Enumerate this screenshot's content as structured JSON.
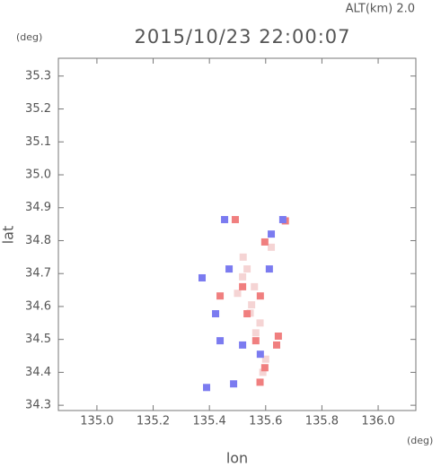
{
  "chart_data": {
    "type": "scatter",
    "header": "ALT(km) 2.0",
    "title": "2015/10/23 22:00:07",
    "y_unit": "(deg)",
    "x_unit": "(deg)",
    "xlabel": "lon",
    "ylabel": "lat",
    "xlim": [
      134.863,
      136.134
    ],
    "ylim": [
      34.284,
      35.354
    ],
    "xticks": [
      {
        "value": 135.0,
        "label": "135.0"
      },
      135.2,
      135.4,
      135.6,
      135.8,
      {
        "value": 136.0,
        "label": "136.0"
      }
    ],
    "yticks": [
      34.3,
      34.4,
      34.5,
      34.6,
      34.7,
      34.8,
      34.9,
      {
        "value": 35.0,
        "label": "35.0"
      },
      35.1,
      35.2,
      35.3
    ],
    "series": [
      {
        "color": "#f5d4d4",
        "x": [
          135.534,
          135.55,
          135.518,
          135.56,
          135.58,
          135.5,
          135.565,
          135.6,
          135.545,
          135.62,
          135.59,
          135.52
        ],
        "values": [
          34.714,
          34.605,
          34.69,
          34.66,
          34.55,
          34.64,
          34.52,
          34.44,
          34.58,
          34.78,
          34.4,
          34.75
        ]
      },
      {
        "color": "#f07f7f",
        "x": [
          135.492,
          135.597,
          135.438,
          135.534,
          135.565,
          135.639,
          135.597,
          135.518,
          135.581,
          135.645,
          135.67,
          135.58
        ],
        "values": [
          34.864,
          34.796,
          34.632,
          34.578,
          34.496,
          34.483,
          34.414,
          34.66,
          34.632,
          34.51,
          34.86,
          34.37
        ]
      },
      {
        "color": "#7b7bf0",
        "x": [
          135.454,
          135.661,
          135.374,
          135.422,
          135.438,
          135.518,
          135.486,
          135.581,
          135.47,
          135.613,
          135.39,
          135.62
        ],
        "values": [
          34.864,
          34.864,
          34.687,
          34.578,
          34.496,
          34.483,
          34.365,
          34.455,
          34.714,
          34.714,
          34.354,
          34.82
        ]
      }
    ]
  }
}
